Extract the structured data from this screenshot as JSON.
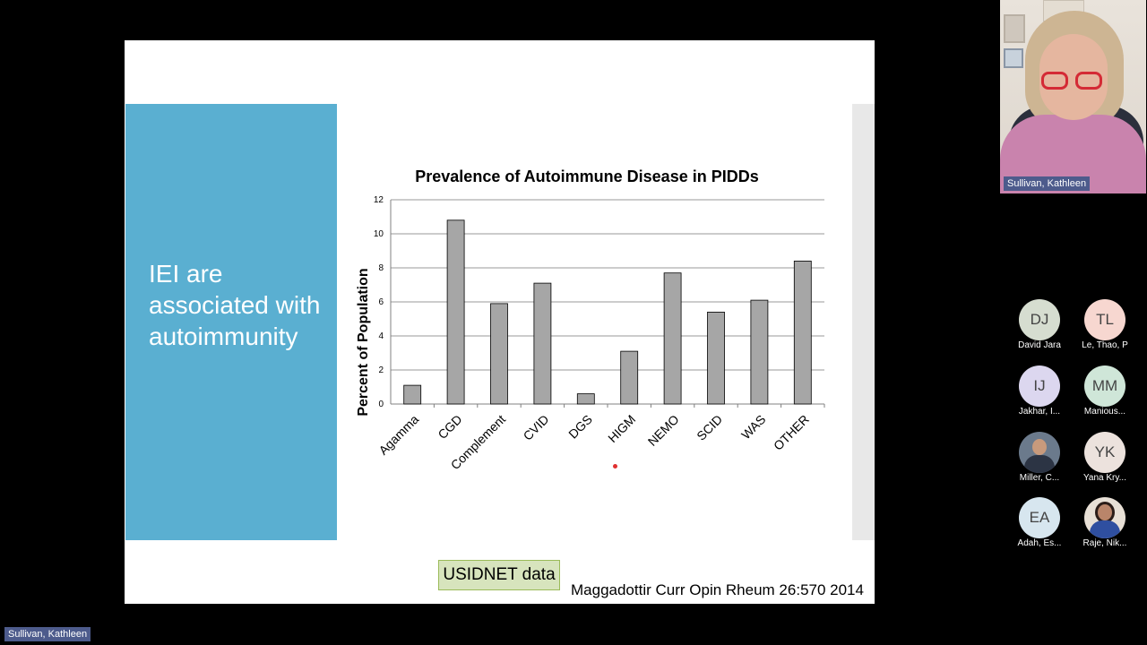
{
  "slide": {
    "heading": "IEI are associated with autoimmunity",
    "badge": "USIDNET data",
    "citation": "Maggadottir Curr Opin Rheum 26:570 2014"
  },
  "chart_data": {
    "type": "bar",
    "title": "Prevalence of Autoimmune Disease in PIDDs",
    "xlabel": "",
    "ylabel": "Percent of Population",
    "categories": [
      "Agamma",
      "CGD",
      "Complement",
      "CVID",
      "DGS",
      "HIGM",
      "NEMO",
      "SCID",
      "WAS",
      "OTHER"
    ],
    "values": [
      1.1,
      10.8,
      5.9,
      7.1,
      0.6,
      3.1,
      7.7,
      5.4,
      6.1,
      8.4
    ],
    "ylim": [
      0,
      12
    ],
    "yticks": [
      "0",
      "2",
      "4",
      "6",
      "8",
      "10",
      "12"
    ],
    "grid": true,
    "bar_color": "#a6a6a6"
  },
  "meeting": {
    "speaker_name": "Sullivan, Kathleen",
    "self_label": "Sullivan, Kathleen",
    "participants": [
      {
        "initials": "DJ",
        "name": "David Jara",
        "color": "#d6ddd0"
      },
      {
        "initials": "TL",
        "name": "Le, Thao, P",
        "color": "#f7d7d0"
      },
      {
        "initials": "IJ",
        "name": "Jakhar, I...",
        "color": "#dcd7ef"
      },
      {
        "initials": "MM",
        "name": "Manious...",
        "color": "#cfe6d8"
      },
      {
        "initials": "",
        "name": "Miller, C...",
        "color": "#6b7a8c"
      },
      {
        "initials": "YK",
        "name": "Yana Kry...",
        "color": "#ece2dd"
      },
      {
        "initials": "EA",
        "name": "Adah, Es...",
        "color": "#d7e6ef"
      },
      {
        "initials": "",
        "name": "Raje, Nik...",
        "color": "#e8e0d6"
      }
    ]
  }
}
